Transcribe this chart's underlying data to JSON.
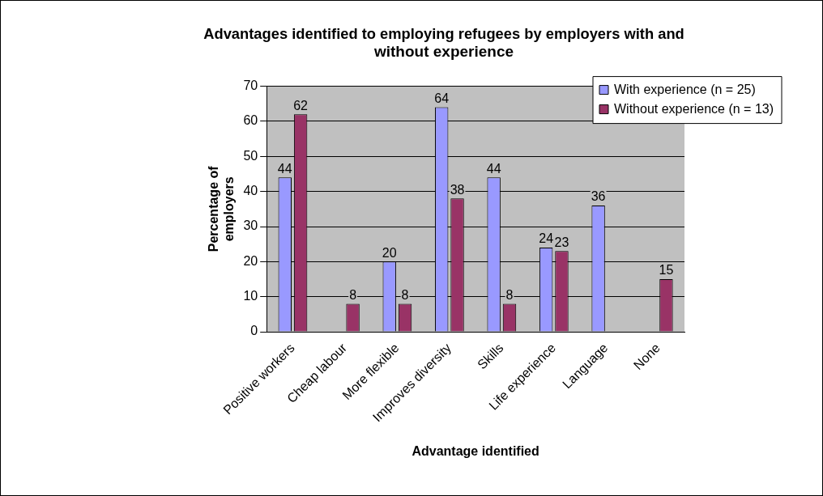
{
  "chart_data": {
    "type": "bar",
    "title": "Advantages identified to employing refugees by employers with and without experience",
    "xlabel": "Advantage identified",
    "ylabel": "Percentage of employers",
    "categories": [
      "Positive workers",
      "Cheap labour",
      "More flexible",
      "Improves diversity",
      "Skills",
      "Life experience",
      "Language",
      "None"
    ],
    "series": [
      {
        "name": "With experience (n = 25)",
        "color": "#9999ff",
        "values": [
          44,
          0,
          20,
          64,
          44,
          24,
          36,
          0
        ],
        "value_labels": [
          "44",
          null,
          "20",
          "64",
          "44",
          "24",
          "36",
          null
        ]
      },
      {
        "name": "Without experience (n = 13)",
        "color": "#993366",
        "values": [
          62,
          8,
          8,
          38,
          8,
          23,
          0,
          15
        ],
        "value_labels": [
          "62",
          "8",
          "8",
          "38",
          "8",
          "23",
          null,
          "15"
        ]
      }
    ],
    "ylim": [
      0,
      70
    ],
    "yticks": [
      0,
      10,
      20,
      30,
      40,
      50,
      60,
      70
    ],
    "grid": "y",
    "legend": "top right"
  }
}
